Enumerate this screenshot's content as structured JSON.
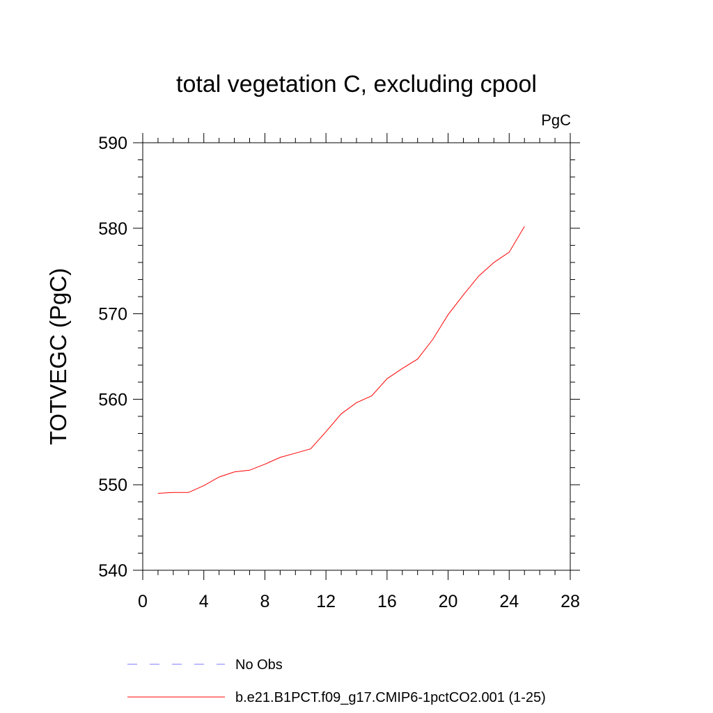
{
  "chart_data": {
    "type": "line",
    "title": "total vegetation C, excluding cpool",
    "units_label": "PgC",
    "ylabel": "TOTVEGC  (PgC)",
    "xlabel": "",
    "xlim": [
      0,
      28
    ],
    "ylim": [
      540,
      590
    ],
    "x_ticks": [
      0,
      4,
      8,
      12,
      16,
      20,
      24,
      28
    ],
    "y_ticks": [
      540,
      550,
      560,
      570,
      580,
      590
    ],
    "grid": false,
    "legend_position": "bottom",
    "series": [
      {
        "name": "b.e21.B1PCT.f09_g17.CMIP6-1pctCO2.001 (1-25)",
        "color": "#ff0000",
        "style": "solid",
        "x": [
          1,
          2,
          3,
          4,
          5,
          6,
          7,
          8,
          9,
          10,
          11,
          12,
          13,
          14,
          15,
          16,
          17,
          18,
          19,
          20,
          21,
          22,
          23,
          24,
          25
        ],
        "y": [
          549.0,
          549.1,
          549.1,
          549.9,
          550.9,
          551.5,
          551.7,
          552.4,
          553.2,
          553.7,
          554.2,
          556.2,
          558.3,
          559.6,
          560.4,
          562.4,
          563.6,
          564.7,
          567.0,
          569.9,
          572.2,
          574.4,
          576.0,
          577.2,
          580.2
        ]
      }
    ],
    "legend": [
      {
        "label": "No Obs",
        "color": "#7777ff",
        "style": "dashed"
      },
      {
        "label": "b.e21.B1PCT.f09_g17.CMIP6-1pctCO2.001 (1-25)",
        "color": "#ff0000",
        "style": "solid"
      }
    ]
  }
}
